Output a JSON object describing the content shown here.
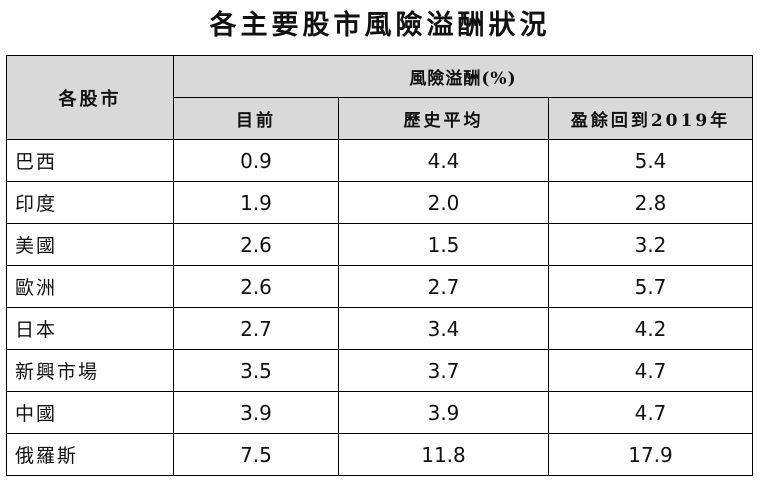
{
  "chart_data": {
    "type": "table",
    "title": "各主要股市風險溢酬狀況",
    "row_header": "各股市",
    "group_header": "風險溢酬(%)",
    "columns": [
      "目前",
      "歷史平均",
      "盈餘回到2019年"
    ],
    "rows": [
      {
        "market": "巴西",
        "values": [
          "0.9",
          "4.4",
          "5.4"
        ]
      },
      {
        "market": "印度",
        "values": [
          "1.9",
          "2.0",
          "2.8"
        ]
      },
      {
        "market": "美國",
        "values": [
          "2.6",
          "1.5",
          "3.2"
        ]
      },
      {
        "market": "歐洲",
        "values": [
          "2.6",
          "2.7",
          "5.7"
        ]
      },
      {
        "market": "日本",
        "values": [
          "2.7",
          "3.4",
          "4.2"
        ]
      },
      {
        "market": "新興市場",
        "values": [
          "3.5",
          "3.7",
          "4.7"
        ]
      },
      {
        "market": "中國",
        "values": [
          "3.9",
          "3.9",
          "4.7"
        ]
      },
      {
        "market": "俄羅斯",
        "values": [
          "7.5",
          "11.8",
          "17.9"
        ]
      }
    ]
  }
}
